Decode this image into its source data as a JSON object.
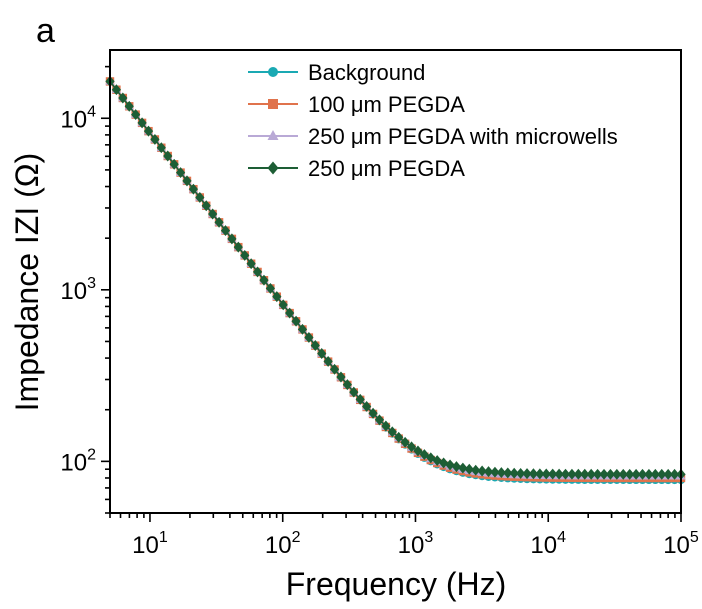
{
  "panel_label": "a",
  "chart_data": {
    "type": "line",
    "xlabel": "Frequency (Hz)",
    "ylabel": "Impedance IZI (Ω)",
    "x_scale": "log",
    "y_scale": "log",
    "xlim": [
      5,
      100000
    ],
    "ylim": [
      50,
      25000
    ],
    "x_ticks": [
      {
        "value": 10,
        "base": "10",
        "exp": "1"
      },
      {
        "value": 100,
        "base": "10",
        "exp": "2"
      },
      {
        "value": 1000,
        "base": "10",
        "exp": "3"
      },
      {
        "value": 10000,
        "base": "10",
        "exp": "4"
      },
      {
        "value": 100000,
        "base": "10",
        "exp": "5"
      }
    ],
    "y_ticks": [
      {
        "value": 100,
        "base": "10",
        "exp": "2"
      },
      {
        "value": 1000,
        "base": "10",
        "exp": "3"
      },
      {
        "value": 10000,
        "base": "10",
        "exp": "4"
      }
    ],
    "grid": false,
    "legend_position": "top-right",
    "model": {
      "capacitance_term": 82000,
      "x_start": 5,
      "x_end": 100000,
      "points": 90
    },
    "series": [
      {
        "name": "Background",
        "color": "#1aa9b3",
        "marker": "circle",
        "resistance": 78
      },
      {
        "name": "100 μm PEGDA",
        "color": "#e0734c",
        "marker": "square",
        "resistance": 80
      },
      {
        "name": "250 μm PEGDA with microwells",
        "color": "#b9a9d6",
        "marker": "triangle",
        "resistance": 82
      },
      {
        "name": "250 μm PEGDA",
        "color": "#1d5e35",
        "marker": "diamond",
        "resistance": 84
      }
    ]
  }
}
